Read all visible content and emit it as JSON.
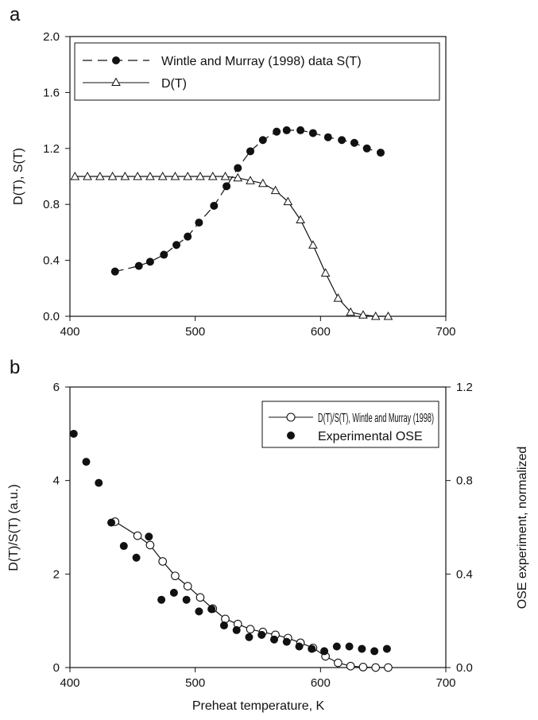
{
  "chart_data": [
    {
      "panel_label": "a",
      "type": "line",
      "xlabel": "",
      "ylabel": "D(T),  S(T)",
      "xlim": [
        400,
        700
      ],
      "ylim": [
        0,
        2.0
      ],
      "x_ticks": [
        "400",
        "500",
        "600",
        "700"
      ],
      "y_ticks": [
        "0.0",
        "0.4",
        "0.8",
        "1.2",
        "1.6",
        "2.0"
      ],
      "legend_position": "top-left",
      "series": [
        {
          "name": "Wintle and Murray (1998) data S(T)",
          "marker": "filled-circle",
          "line": "dashed",
          "x": [
            436,
            455,
            464,
            475,
            485,
            494,
            503,
            515,
            525,
            534,
            544,
            554,
            565,
            573,
            584,
            594,
            606,
            617,
            627,
            637,
            648
          ],
          "y": [
            0.32,
            0.36,
            0.39,
            0.44,
            0.51,
            0.57,
            0.67,
            0.79,
            0.93,
            1.06,
            1.18,
            1.26,
            1.32,
            1.33,
            1.33,
            1.31,
            1.28,
            1.26,
            1.24,
            1.2,
            1.17
          ]
        },
        {
          "name": "D(T)",
          "marker": "open-triangle",
          "line": "solid",
          "x": [
            404,
            414,
            424,
            434,
            444,
            454,
            464,
            474,
            484,
            494,
            504,
            514,
            524,
            534,
            544,
            554,
            564,
            574,
            584,
            594,
            604,
            614,
            624,
            634,
            644,
            654
          ],
          "y": [
            1.0,
            1.0,
            1.0,
            1.0,
            1.0,
            1.0,
            1.0,
            1.0,
            1.0,
            1.0,
            1.0,
            1.0,
            1.0,
            0.99,
            0.97,
            0.95,
            0.9,
            0.82,
            0.69,
            0.51,
            0.31,
            0.13,
            0.03,
            0.01,
            0.0,
            0.0
          ]
        }
      ]
    },
    {
      "panel_label": "b",
      "type": "line",
      "xlabel": "Preheat temperature, K",
      "ylabel": "D(T)/S(T)  (a.u.)",
      "y2label": "OSE experiment, normalized",
      "xlim": [
        400,
        700
      ],
      "ylim": [
        0,
        6
      ],
      "y2lim": [
        0,
        1.2
      ],
      "x_ticks": [
        "400",
        "500",
        "600",
        "700"
      ],
      "y_ticks": [
        "0",
        "2",
        "4",
        "6"
      ],
      "y2_ticks": [
        "0.0",
        "0.4",
        "0.8",
        "1.2"
      ],
      "legend_position": "top-right",
      "series": [
        {
          "name": "D(T)/S(T), Wintle and Murray (1998)",
          "marker": "open-circle",
          "line": "solid",
          "axis": "left",
          "x": [
            436,
            454,
            464,
            474,
            484,
            494,
            504,
            514,
            524,
            534,
            544,
            554,
            564,
            574,
            584,
            594,
            604,
            614,
            624,
            634,
            644,
            654
          ],
          "y": [
            3.12,
            2.82,
            2.62,
            2.27,
            1.96,
            1.74,
            1.5,
            1.26,
            1.04,
            0.93,
            0.82,
            0.76,
            0.7,
            0.63,
            0.53,
            0.42,
            0.24,
            0.1,
            0.03,
            0.01,
            0.0,
            0.0
          ]
        },
        {
          "name": "Experimental OSE",
          "marker": "filled-circle",
          "line": "none",
          "axis": "right",
          "x": [
            403,
            413,
            423,
            433,
            443,
            453,
            463,
            473,
            483,
            493,
            503,
            513,
            523,
            533,
            543,
            553,
            563,
            573,
            583,
            593,
            603,
            613,
            623,
            633,
            643,
            653
          ],
          "y": [
            1.0,
            0.88,
            0.79,
            0.62,
            0.52,
            0.47,
            0.56,
            0.29,
            0.32,
            0.29,
            0.24,
            0.25,
            0.18,
            0.16,
            0.13,
            0.14,
            0.12,
            0.11,
            0.09,
            0.08,
            0.07,
            0.09,
            0.09,
            0.08,
            0.07,
            0.08
          ]
        }
      ]
    }
  ]
}
